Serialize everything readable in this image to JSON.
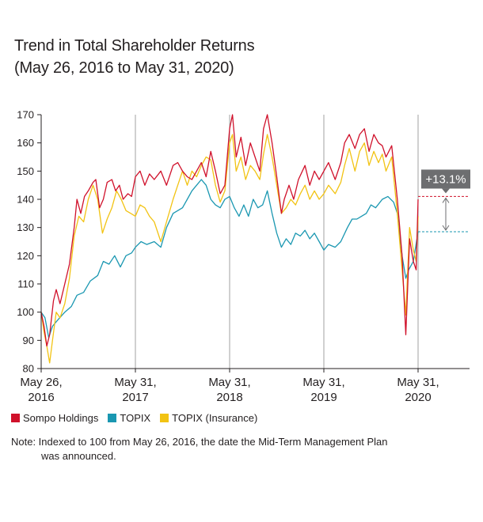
{
  "title": {
    "line1": "Trend in Total Shareholder Returns",
    "line2": "(May 26, 2016 to May 31, 2020)"
  },
  "legend": [
    {
      "name": "Sompo Holdings",
      "color": "#d0112b"
    },
    {
      "name": "TOPIX",
      "color": "#1a97b1"
    },
    {
      "name": "TOPIX (Insurance)",
      "color": "#f2c313"
    }
  ],
  "note": {
    "line1": "Note: Indexed to 100 from May 26, 2016, the date the Mid-Term Management Plan",
    "line2": "was announced."
  },
  "chart_data": {
    "type": "line",
    "ylim": [
      80,
      170
    ],
    "y_ticks": [
      80,
      90,
      100,
      110,
      120,
      130,
      140,
      150,
      160,
      170
    ],
    "x_range": [
      0,
      4
    ],
    "x_ticks": [
      {
        "x": 0,
        "line1": "May 26,",
        "line2": "2016"
      },
      {
        "x": 1,
        "line1": "May 31,",
        "line2": "2017"
      },
      {
        "x": 2,
        "line1": "May 31,",
        "line2": "2018"
      },
      {
        "x": 3,
        "line1": "May 31,",
        "line2": "2019"
      },
      {
        "x": 4,
        "line1": "May 31,",
        "line2": "2020"
      }
    ],
    "annotation": {
      "label": "+13.1%",
      "upper": 141,
      "lower": 128.5
    },
    "series": [
      {
        "name": "Sompo Holdings",
        "color": "#d0112b",
        "points": [
          [
            0,
            100
          ],
          [
            0.03,
            95
          ],
          [
            0.06,
            88
          ],
          [
            0.09,
            92
          ],
          [
            0.13,
            104
          ],
          [
            0.16,
            108
          ],
          [
            0.2,
            103
          ],
          [
            0.25,
            110
          ],
          [
            0.3,
            117
          ],
          [
            0.35,
            130
          ],
          [
            0.38,
            140
          ],
          [
            0.42,
            135
          ],
          [
            0.46,
            141
          ],
          [
            0.5,
            143
          ],
          [
            0.55,
            146
          ],
          [
            0.58,
            147
          ],
          [
            0.62,
            137
          ],
          [
            0.66,
            140
          ],
          [
            0.7,
            146
          ],
          [
            0.75,
            147
          ],
          [
            0.79,
            143
          ],
          [
            0.83,
            145
          ],
          [
            0.87,
            140
          ],
          [
            0.92,
            142
          ],
          [
            0.96,
            141
          ],
          [
            1.0,
            148
          ],
          [
            1.05,
            150
          ],
          [
            1.1,
            145
          ],
          [
            1.15,
            149
          ],
          [
            1.2,
            147
          ],
          [
            1.27,
            150
          ],
          [
            1.33,
            145
          ],
          [
            1.4,
            152
          ],
          [
            1.45,
            153
          ],
          [
            1.5,
            150
          ],
          [
            1.55,
            148
          ],
          [
            1.6,
            147
          ],
          [
            1.65,
            150
          ],
          [
            1.7,
            153
          ],
          [
            1.75,
            148
          ],
          [
            1.8,
            157
          ],
          [
            1.85,
            150
          ],
          [
            1.9,
            142
          ],
          [
            1.95,
            145
          ],
          [
            2.0,
            165
          ],
          [
            2.03,
            170
          ],
          [
            2.07,
            155
          ],
          [
            2.12,
            162
          ],
          [
            2.17,
            152
          ],
          [
            2.22,
            160
          ],
          [
            2.27,
            155
          ],
          [
            2.32,
            150
          ],
          [
            2.36,
            165
          ],
          [
            2.4,
            170
          ],
          [
            2.45,
            160
          ],
          [
            2.5,
            148
          ],
          [
            2.55,
            135
          ],
          [
            2.58,
            140
          ],
          [
            2.63,
            145
          ],
          [
            2.68,
            140
          ],
          [
            2.73,
            147
          ],
          [
            2.8,
            152
          ],
          [
            2.85,
            145
          ],
          [
            2.9,
            150
          ],
          [
            2.95,
            147
          ],
          [
            3.0,
            150
          ],
          [
            3.05,
            153
          ],
          [
            3.12,
            147
          ],
          [
            3.18,
            153
          ],
          [
            3.22,
            160
          ],
          [
            3.27,
            163
          ],
          [
            3.33,
            158
          ],
          [
            3.38,
            163
          ],
          [
            3.43,
            165
          ],
          [
            3.48,
            157
          ],
          [
            3.53,
            163
          ],
          [
            3.58,
            160
          ],
          [
            3.62,
            159
          ],
          [
            3.66,
            155
          ],
          [
            3.72,
            159
          ],
          [
            3.78,
            140
          ],
          [
            3.83,
            120
          ],
          [
            3.87,
            92
          ],
          [
            3.91,
            126
          ],
          [
            3.95,
            118
          ],
          [
            3.98,
            115
          ],
          [
            4.0,
            140
          ]
        ]
      },
      {
        "name": "TOPIX",
        "color": "#1a97b1",
        "points": [
          [
            0,
            100
          ],
          [
            0.04,
            98
          ],
          [
            0.08,
            91
          ],
          [
            0.12,
            95
          ],
          [
            0.17,
            97
          ],
          [
            0.25,
            100
          ],
          [
            0.32,
            102
          ],
          [
            0.38,
            106
          ],
          [
            0.45,
            107
          ],
          [
            0.52,
            111
          ],
          [
            0.6,
            113
          ],
          [
            0.66,
            118
          ],
          [
            0.72,
            117
          ],
          [
            0.78,
            120
          ],
          [
            0.84,
            116
          ],
          [
            0.9,
            120
          ],
          [
            0.96,
            121
          ],
          [
            1.0,
            123
          ],
          [
            1.06,
            125
          ],
          [
            1.12,
            124
          ],
          [
            1.2,
            125
          ],
          [
            1.27,
            123
          ],
          [
            1.33,
            130
          ],
          [
            1.4,
            135
          ],
          [
            1.45,
            136
          ],
          [
            1.5,
            137
          ],
          [
            1.55,
            140
          ],
          [
            1.6,
            143
          ],
          [
            1.65,
            145
          ],
          [
            1.7,
            147
          ],
          [
            1.75,
            145
          ],
          [
            1.8,
            140
          ],
          [
            1.85,
            138
          ],
          [
            1.9,
            137
          ],
          [
            1.95,
            140
          ],
          [
            2.0,
            141
          ],
          [
            2.05,
            137
          ],
          [
            2.1,
            134
          ],
          [
            2.15,
            138
          ],
          [
            2.2,
            134
          ],
          [
            2.25,
            140
          ],
          [
            2.3,
            137
          ],
          [
            2.35,
            138
          ],
          [
            2.4,
            143
          ],
          [
            2.45,
            135
          ],
          [
            2.5,
            128
          ],
          [
            2.55,
            123
          ],
          [
            2.6,
            126
          ],
          [
            2.65,
            124
          ],
          [
            2.7,
            128
          ],
          [
            2.75,
            127
          ],
          [
            2.8,
            129
          ],
          [
            2.85,
            126
          ],
          [
            2.9,
            128
          ],
          [
            2.95,
            125
          ],
          [
            3.0,
            122
          ],
          [
            3.05,
            124
          ],
          [
            3.12,
            123
          ],
          [
            3.18,
            125
          ],
          [
            3.25,
            130
          ],
          [
            3.3,
            133
          ],
          [
            3.35,
            133
          ],
          [
            3.4,
            134
          ],
          [
            3.45,
            135
          ],
          [
            3.5,
            138
          ],
          [
            3.55,
            137
          ],
          [
            3.62,
            140
          ],
          [
            3.68,
            141
          ],
          [
            3.74,
            139
          ],
          [
            3.78,
            135
          ],
          [
            3.83,
            120
          ],
          [
            3.87,
            112
          ],
          [
            3.9,
            115
          ],
          [
            3.95,
            118
          ],
          [
            4.0,
            128.5
          ]
        ]
      },
      {
        "name": "TOPIX (Insurance)",
        "color": "#f2c313",
        "points": [
          [
            0,
            100
          ],
          [
            0.03,
            93
          ],
          [
            0.06,
            88
          ],
          [
            0.09,
            82
          ],
          [
            0.12,
            90
          ],
          [
            0.16,
            100
          ],
          [
            0.2,
            98
          ],
          [
            0.25,
            103
          ],
          [
            0.3,
            112
          ],
          [
            0.35,
            127
          ],
          [
            0.4,
            134
          ],
          [
            0.45,
            132
          ],
          [
            0.5,
            140
          ],
          [
            0.55,
            145
          ],
          [
            0.6,
            140
          ],
          [
            0.65,
            128
          ],
          [
            0.7,
            133
          ],
          [
            0.75,
            137
          ],
          [
            0.8,
            143
          ],
          [
            0.85,
            140
          ],
          [
            0.9,
            136
          ],
          [
            0.95,
            135
          ],
          [
            1.0,
            134
          ],
          [
            1.05,
            138
          ],
          [
            1.1,
            137
          ],
          [
            1.15,
            134
          ],
          [
            1.2,
            132
          ],
          [
            1.27,
            125
          ],
          [
            1.33,
            132
          ],
          [
            1.4,
            140
          ],
          [
            1.45,
            145
          ],
          [
            1.5,
            150
          ],
          [
            1.55,
            145
          ],
          [
            1.6,
            150
          ],
          [
            1.65,
            148
          ],
          [
            1.7,
            152
          ],
          [
            1.75,
            155
          ],
          [
            1.8,
            154
          ],
          [
            1.85,
            145
          ],
          [
            1.9,
            139
          ],
          [
            1.95,
            143
          ],
          [
            2.0,
            160
          ],
          [
            2.03,
            163
          ],
          [
            2.07,
            150
          ],
          [
            2.12,
            155
          ],
          [
            2.17,
            147
          ],
          [
            2.22,
            152
          ],
          [
            2.27,
            150
          ],
          [
            2.32,
            147
          ],
          [
            2.36,
            156
          ],
          [
            2.4,
            163
          ],
          [
            2.45,
            155
          ],
          [
            2.5,
            145
          ],
          [
            2.55,
            135
          ],
          [
            2.6,
            137
          ],
          [
            2.65,
            140
          ],
          [
            2.7,
            138
          ],
          [
            2.75,
            142
          ],
          [
            2.8,
            145
          ],
          [
            2.85,
            140
          ],
          [
            2.9,
            143
          ],
          [
            2.95,
            140
          ],
          [
            3.0,
            142
          ],
          [
            3.05,
            145
          ],
          [
            3.12,
            142
          ],
          [
            3.18,
            146
          ],
          [
            3.22,
            152
          ],
          [
            3.27,
            158
          ],
          [
            3.33,
            150
          ],
          [
            3.38,
            157
          ],
          [
            3.43,
            160
          ],
          [
            3.48,
            152
          ],
          [
            3.53,
            157
          ],
          [
            3.58,
            153
          ],
          [
            3.62,
            156
          ],
          [
            3.66,
            150
          ],
          [
            3.72,
            155
          ],
          [
            3.78,
            135
          ],
          [
            3.83,
            115
          ],
          [
            3.87,
            99
          ],
          [
            3.91,
            130
          ],
          [
            3.95,
            122
          ],
          [
            3.98,
            118
          ],
          [
            4.0,
            134
          ]
        ]
      }
    ]
  }
}
